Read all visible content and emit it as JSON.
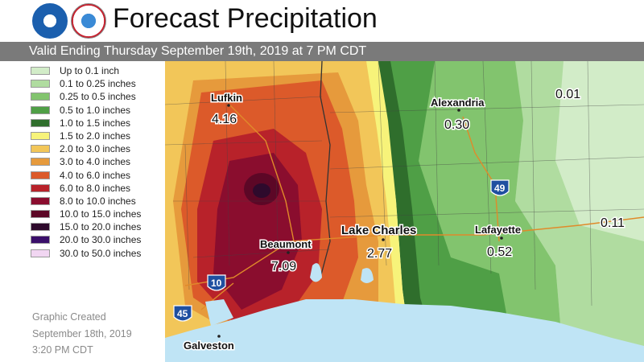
{
  "header": {
    "title": "Forecast Precipitation",
    "valid_text": "Valid Ending Thursday September 19th, 2019 at 7 PM CDT"
  },
  "legend": [
    {
      "label": "Up to 0.1 inch",
      "color": "#d2ecc8"
    },
    {
      "label": "0.1 to 0.25 inches",
      "color": "#b0dca0"
    },
    {
      "label": "0.25 to 0.5 inches",
      "color": "#82c46e"
    },
    {
      "label": "0.5 to 1.0 inches",
      "color": "#4f9f46"
    },
    {
      "label": "1.0 to 1.5 inches",
      "color": "#2f6e2c"
    },
    {
      "label": "1.5 to 2.0 inches",
      "color": "#f7f37a"
    },
    {
      "label": "2.0 to 3.0 inches",
      "color": "#f2c659"
    },
    {
      "label": "3.0 to 4.0 inches",
      "color": "#e69a3c"
    },
    {
      "label": "4.0 to 6.0 inches",
      "color": "#dc5a2a"
    },
    {
      "label": "6.0 to 8.0 inches",
      "color": "#b8222a"
    },
    {
      "label": "8.0 to 10.0 inches",
      "color": "#8a0d2e"
    },
    {
      "label": "10.0 to 15.0 inches",
      "color": "#5c0726"
    },
    {
      "label": "15.0 to 20.0 inches",
      "color": "#2e0a2c"
    },
    {
      "label": "20.0 to 30.0 inches",
      "color": "#3a0f6a"
    },
    {
      "label": "30.0 to 50.0 inches",
      "color": "#f1d6f2"
    }
  ],
  "created": {
    "line1": "Graphic Created",
    "line2": "September 18th, 2019",
    "line3": "3:20 PM CDT"
  },
  "cities": [
    {
      "name": "Lufkin",
      "amount": "4.16"
    },
    {
      "name": "Alexandria",
      "amount": "0.30"
    },
    {
      "name": "Beaumont",
      "amount": "7.09"
    },
    {
      "name": "Lake Charles",
      "amount": "2.77"
    },
    {
      "name": "Lafayette",
      "amount": "0.52"
    },
    {
      "name": "Galveston"
    }
  ],
  "extra_amounts": [
    "0.01",
    "0.11"
  ],
  "highways": [
    "10",
    "45",
    "49"
  ]
}
